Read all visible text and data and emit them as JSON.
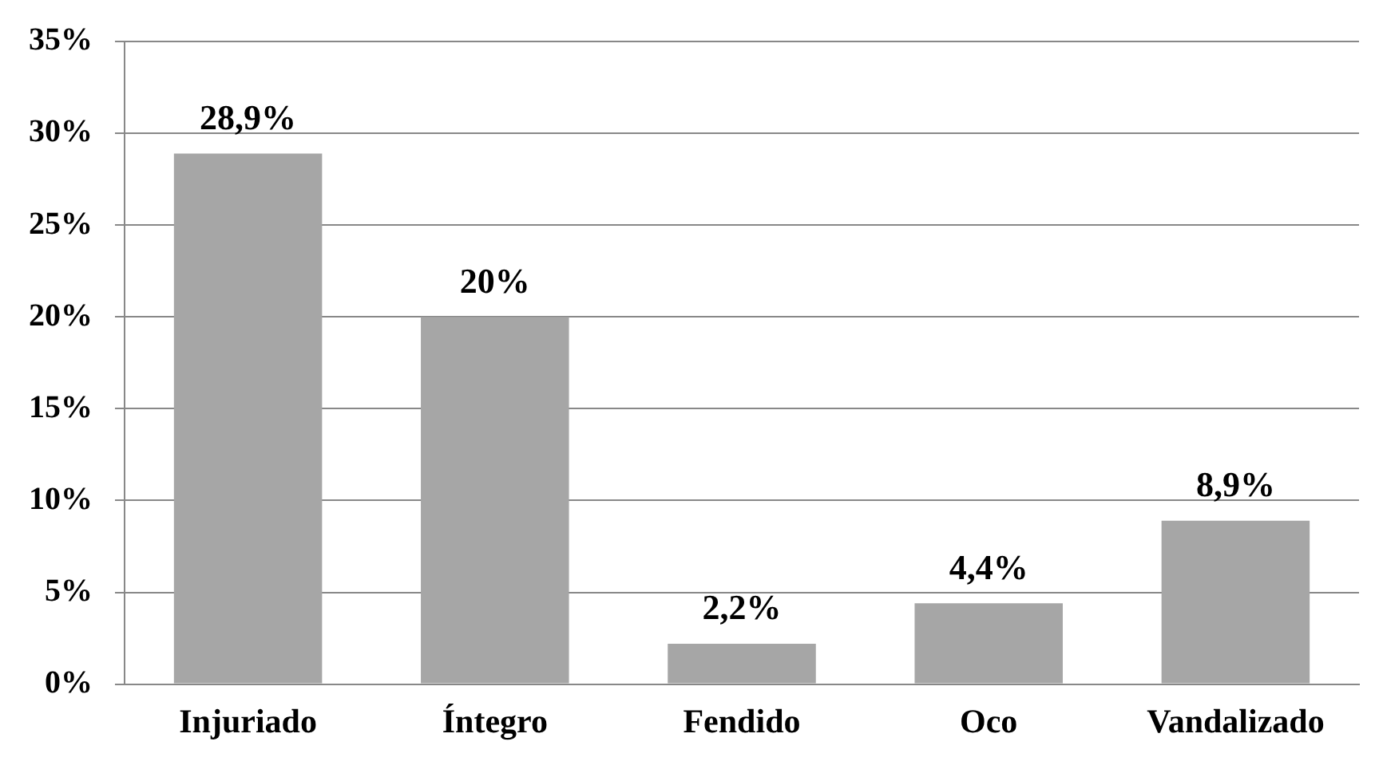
{
  "chart_data": {
    "type": "bar",
    "categories": [
      "Injuriado",
      "Íntegro",
      "Fendido",
      "Oco",
      "Vandalizado"
    ],
    "values": [
      28.9,
      20,
      2.2,
      4.4,
      8.9
    ],
    "value_labels": [
      "28,9%",
      "20%",
      "2,2%",
      "4,4%",
      "8,9%"
    ],
    "color": "#a6a6a6",
    "ylim": [
      0,
      35
    ],
    "yticks": [
      {
        "value": 0,
        "label": "0%"
      },
      {
        "value": 5,
        "label": "5%"
      },
      {
        "value": 10,
        "label": "10%"
      },
      {
        "value": 15,
        "label": "15%"
      },
      {
        "value": 20,
        "label": "20%"
      },
      {
        "value": 25,
        "label": "25%"
      },
      {
        "value": 30,
        "label": "30%"
      },
      {
        "value": 35,
        "label": "35%"
      }
    ],
    "grid": "y",
    "legend": false
  }
}
